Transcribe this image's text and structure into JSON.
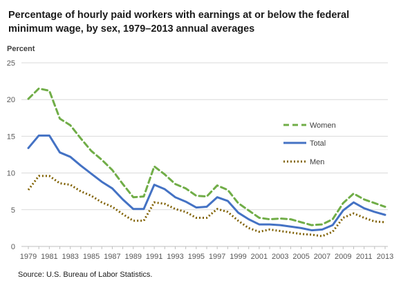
{
  "chart_data": {
    "type": "line",
    "title": "Percentage of hourly paid workers with earnings at or below the federal minimum wage, by sex, 1979–2013 annual averages",
    "ylabel": "Percent",
    "xlabel": "",
    "ylim": [
      0,
      25
    ],
    "yticks": [
      0,
      5,
      10,
      15,
      20,
      25
    ],
    "xtick_labels": [
      "1979",
      "1981",
      "1983",
      "1985",
      "1987",
      "1989",
      "1991",
      "1993",
      "1995",
      "1997",
      "1999",
      "2001",
      "2003",
      "2005",
      "2007",
      "2009",
      "2011",
      "2013"
    ],
    "x": [
      1979,
      1980,
      1981,
      1982,
      1983,
      1984,
      1985,
      1986,
      1987,
      1988,
      1989,
      1990,
      1991,
      1992,
      1993,
      1994,
      1995,
      1996,
      1997,
      1998,
      1999,
      2000,
      2001,
      2002,
      2003,
      2004,
      2005,
      2006,
      2007,
      2008,
      2009,
      2010,
      2011,
      2012,
      2013
    ],
    "grid": true,
    "legend_position": "right",
    "series": [
      {
        "name": "Women",
        "color": "#70ad47",
        "style": "dashed",
        "values": [
          20.1,
          21.5,
          21.2,
          17.4,
          16.5,
          14.7,
          13.0,
          11.8,
          10.4,
          8.5,
          6.7,
          6.8,
          10.9,
          9.8,
          8.5,
          7.9,
          6.9,
          6.8,
          8.3,
          7.7,
          5.9,
          4.9,
          3.9,
          3.7,
          3.8,
          3.7,
          3.3,
          2.9,
          3.0,
          3.7,
          5.9,
          7.2,
          6.4,
          5.9,
          5.4
        ]
      },
      {
        "name": "Total",
        "color": "#4472c4",
        "style": "solid",
        "values": [
          13.4,
          15.1,
          15.1,
          12.8,
          12.2,
          11.0,
          9.9,
          8.8,
          7.9,
          6.4,
          5.1,
          5.1,
          8.4,
          7.8,
          6.7,
          6.1,
          5.3,
          5.4,
          6.7,
          6.2,
          4.6,
          3.7,
          3.0,
          3.0,
          2.9,
          2.7,
          2.5,
          2.2,
          2.3,
          2.9,
          4.9,
          6.0,
          5.2,
          4.7,
          4.3
        ]
      },
      {
        "name": "Men",
        "color": "#7f6000",
        "style": "dotted",
        "values": [
          7.7,
          9.6,
          9.6,
          8.6,
          8.4,
          7.5,
          6.9,
          6.0,
          5.4,
          4.4,
          3.5,
          3.5,
          6.0,
          5.8,
          5.1,
          4.7,
          3.9,
          3.9,
          5.1,
          4.7,
          3.5,
          2.5,
          2.0,
          2.3,
          2.1,
          1.9,
          1.7,
          1.6,
          1.4,
          2.0,
          3.9,
          4.5,
          3.9,
          3.4,
          3.3
        ]
      }
    ],
    "source": "Source: U.S. Bureau of Labor Statistics."
  }
}
